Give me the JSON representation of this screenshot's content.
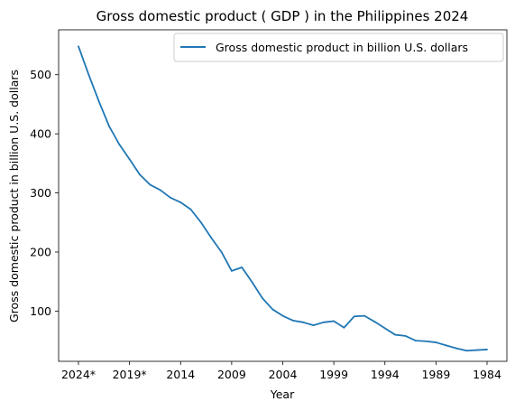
{
  "chart_data": {
    "type": "line",
    "title": "Gross domestic product ( GDP ) in the Philippines 2024",
    "xlabel": "Year",
    "ylabel": "Gross domestic product in billion U.S. dollars",
    "x": [
      "2024*",
      "2023*",
      "2022*",
      "2021*",
      "2020*",
      "2019*",
      "2018",
      "2017",
      "2016",
      "2015",
      "2014",
      "2013",
      "2012",
      "2011",
      "2010",
      "2009",
      "2008",
      "2007",
      "2006",
      "2005",
      "2004",
      "2003",
      "2002",
      "2001",
      "2000",
      "1999",
      "1998",
      "1997",
      "1996",
      "1995",
      "1994",
      "1993",
      "1992",
      "1991",
      "1990",
      "1989",
      "1988",
      "1987",
      "1986",
      "1985",
      "1984"
    ],
    "x_tick_labels": [
      "2024*",
      "2019*",
      "2014",
      "2009",
      "2004",
      "1999",
      "1994",
      "1989",
      "1984"
    ],
    "series": [
      {
        "name": "Gross domestic product in billion U.S. dollars",
        "color": "#1f77b4",
        "values": [
          548,
          500,
          455,
          413,
          382,
          357,
          331,
          314,
          305,
          292,
          284,
          272,
          250,
          224,
          200,
          168,
          174,
          149,
          122,
          103,
          92,
          84,
          81,
          76,
          81,
          83,
          72,
          91,
          92,
          82,
          71,
          60,
          58,
          50,
          49,
          47,
          42,
          37,
          33,
          34,
          35
        ]
      }
    ],
    "y_ticks": [
      100,
      200,
      300,
      400,
      500
    ],
    "ylim": [
      15,
      576
    ],
    "grid": false,
    "legend_position": "top-right"
  }
}
